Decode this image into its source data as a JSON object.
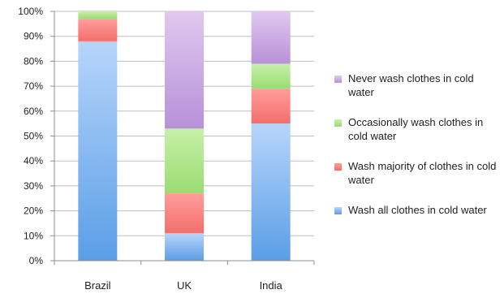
{
  "chart_data": {
    "type": "bar",
    "stacked": true,
    "categories": [
      "Brazil",
      "UK",
      "India"
    ],
    "ylim": [
      0,
      100
    ],
    "ytick_step": 10,
    "ytick_labels": [
      "0%",
      "10%",
      "20%",
      "30%",
      "40%",
      "50%",
      "60%",
      "70%",
      "80%",
      "90%",
      "100%"
    ],
    "grid": true,
    "legend_position": "right",
    "series": [
      {
        "name": "Wash all clothes in cold water",
        "values": [
          88,
          11,
          55
        ],
        "color_top": "#b7d5fb",
        "color_bottom": "#5b9ee6"
      },
      {
        "name": "Wash majority of clothes in cold water",
        "values": [
          9,
          16,
          14
        ],
        "color_top": "#ff9d9b",
        "color_bottom": "#f36f6b"
      },
      {
        "name": "Occasionally wash clothes in cold water",
        "values": [
          3,
          26,
          10
        ],
        "color_top": "#c6f1a8",
        "color_bottom": "#9bdc72"
      },
      {
        "name": "Never wash clothes in cold water",
        "values": [
          0,
          47,
          21
        ],
        "color_top": "#e1c9f0",
        "color_bottom": "#b890d8"
      }
    ]
  }
}
